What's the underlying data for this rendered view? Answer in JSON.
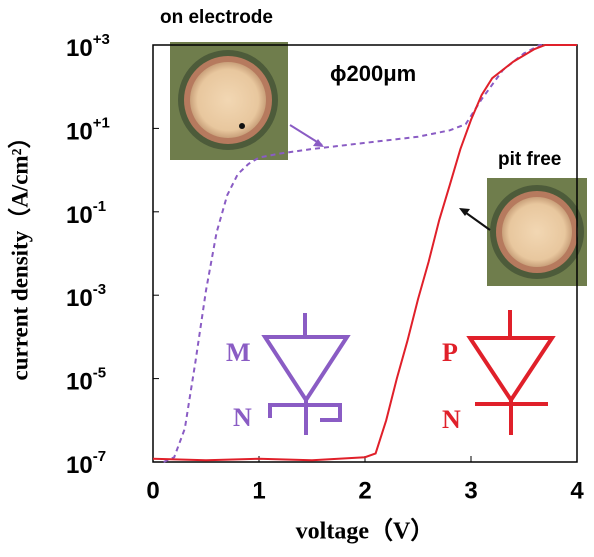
{
  "chart_data": {
    "type": "line",
    "log_y": true,
    "xlabel": "voltage（V）",
    "ylabel": "current  density（A/cm²）",
    "xlim": [
      0,
      4
    ],
    "xticks": [
      0,
      1,
      2,
      3,
      4
    ],
    "ylim": [
      1e-07,
      1000
    ],
    "yticks": [
      {
        "value": 1000,
        "label": "10",
        "exponent": "+3"
      },
      {
        "value": 10,
        "label": "10",
        "exponent": "+1"
      },
      {
        "value": 0.1,
        "label": "10",
        "exponent": "-1"
      },
      {
        "value": 0.001,
        "label": "10",
        "exponent": "-3"
      },
      {
        "value": 1e-05,
        "label": "10",
        "exponent": "-5"
      },
      {
        "value": 1e-07,
        "label": "10",
        "exponent": "-7"
      }
    ],
    "series": [
      {
        "color": "#8a5cc4",
        "dash": true,
        "x": [
          0.1,
          0.2,
          0.3,
          0.4,
          0.5,
          0.6,
          0.7,
          0.8,
          0.9,
          1.0,
          1.2,
          1.5,
          2.0,
          2.5,
          2.8,
          2.95,
          3.1,
          3.3,
          3.5,
          3.65,
          4.0
        ],
        "values": [
          1e-07,
          1.3e-07,
          6.3e-07,
          2.5e-05,
          0.0013,
          0.032,
          0.25,
          0.8,
          1.4,
          2,
          2.5,
          3.2,
          4.5,
          6.3,
          9,
          12.6,
          50,
          250,
          630,
          1000,
          1000
        ]
      },
      {
        "color": "#e0202a",
        "dash": false,
        "x": [
          0,
          0.5,
          1,
          1.5,
          2,
          2.1,
          2.2,
          2.3,
          2.4,
          2.5,
          2.6,
          2.7,
          2.8,
          2.9,
          3.0,
          3.1,
          3.2,
          3.4,
          3.6,
          3.7,
          4.0
        ],
        "values": [
          1.2e-07,
          1.1e-07,
          1.2e-07,
          1.1e-07,
          1.3e-07,
          1.6e-07,
          1e-06,
          1e-05,
          8e-05,
          0.0008,
          0.0063,
          0.063,
          0.44,
          3.2,
          16,
          63,
          160,
          400,
          800,
          1000,
          1000
        ]
      }
    ],
    "annotations": [
      "on electrode",
      "ϕ200μm",
      "pit free"
    ],
    "symbols": {
      "mn": [
        "M",
        "N"
      ],
      "pn": [
        "P",
        "N"
      ]
    }
  }
}
